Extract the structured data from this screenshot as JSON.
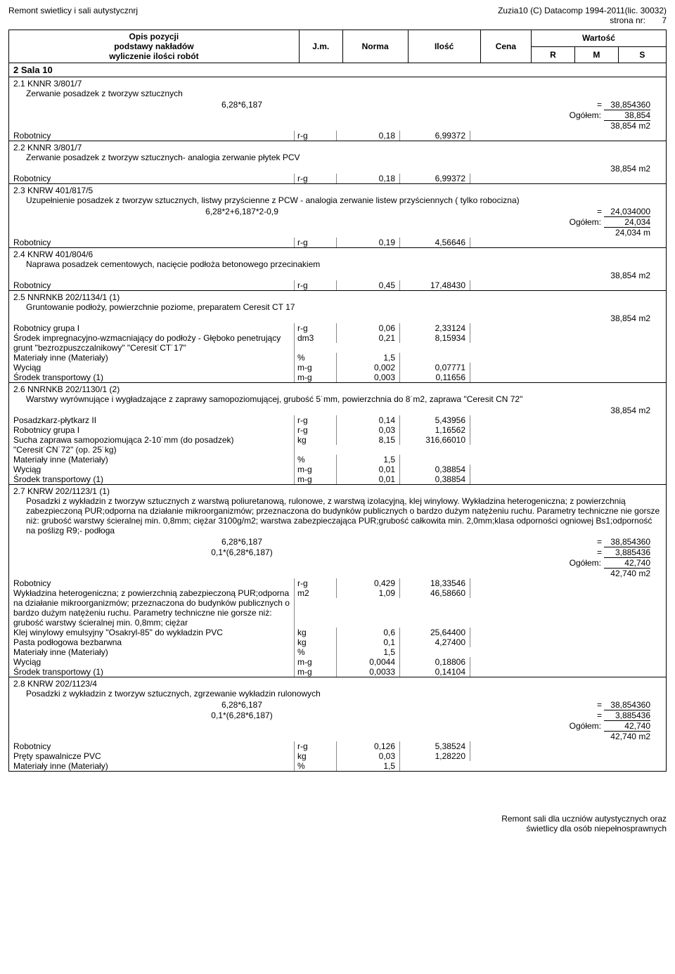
{
  "header": {
    "title_left": "Remont swietlicy i sali autystycznrj",
    "title_right_1": "Zuzia10 (C) Datacomp 1994-2011(lic. 30032)",
    "title_right_2": "strona nr:",
    "page_no": "7"
  },
  "columns": {
    "opis1": "Opis pozycji",
    "opis2": "podstawy nakładów",
    "opis3": "wyliczenie ilości robót",
    "jm": "J.m.",
    "norma": "Norma",
    "ilosc": "Ilość",
    "cena": "Cena",
    "wartosc": "Wartość",
    "r": "R",
    "m": "M",
    "s": "S"
  },
  "section": {
    "num": "2",
    "title": "Sala 10"
  },
  "items": [
    {
      "num": "2.1",
      "code": "KNNR 3/801/7",
      "desc": "Zerwanie posadzek z tworzyw sztucznych",
      "calcs": [
        {
          "formula": "6,28*6,187",
          "result": "38,854360"
        }
      ],
      "ogolem": "38,854",
      "total": "38,854",
      "total_unit": "m2",
      "details": [
        {
          "label": "Robotnicy",
          "jm": "r-g",
          "norma": "0,18",
          "ilosc": "6,99372"
        }
      ]
    },
    {
      "num": "2.2",
      "code": "KNNR 3/801/7",
      "desc": "Zerwanie posadzek z tworzyw sztucznych- analogia zerwanie płytek PCV",
      "total": "38,854",
      "total_unit": "m2",
      "details": [
        {
          "label": "Robotnicy",
          "jm": "r-g",
          "norma": "0,18",
          "ilosc": "6,99372"
        }
      ]
    },
    {
      "num": "2.3",
      "code": "KNRW 401/817/5",
      "desc": "Uzupełnienie posadzek z tworzyw sztucznych, listwy przyścienne z PCW - analogia zerwanie listew przyściennych ( tylko robocizna)",
      "calcs": [
        {
          "formula": "6,28*2+6,187*2-0,9",
          "result": "24,034000"
        }
      ],
      "ogolem": "24,034",
      "total": "24,034",
      "total_unit": "m",
      "details": [
        {
          "label": "Robotnicy",
          "jm": "r-g",
          "norma": "0,19",
          "ilosc": "4,56646"
        }
      ]
    },
    {
      "num": "2.4",
      "code": "KNRW 401/804/6",
      "desc": "Naprawa posadzek cementowych, nacięcie podłoża betonowego przecinakiem",
      "total": "38,854",
      "total_unit": "m2",
      "details": [
        {
          "label": "Robotnicy",
          "jm": "r-g",
          "norma": "0,45",
          "ilosc": "17,48430"
        }
      ]
    },
    {
      "num": "2.5",
      "code": "NNRNKB 202/1134/1 (1)",
      "desc": "Gruntowanie podłoży, powierzchnie poziome, preparatem Ceresit CT 17",
      "total": "38,854",
      "total_unit": "m2",
      "details": [
        {
          "label": "Robotnicy grupa I",
          "jm": "r-g",
          "norma": "0,06",
          "ilosc": "2,33124"
        },
        {
          "label": "Środek impregnacyjno-wzmacniający do podłoży - Głęboko penetrujący grunt \"bezrozpuszczalnikowy\" \"Ceresit˙CT˙17\"",
          "jm": "dm3",
          "norma": "0,21",
          "ilosc": "8,15934"
        },
        {
          "label": "Materiały inne (Materiały)",
          "jm": "%",
          "norma": "1,5",
          "ilosc": ""
        },
        {
          "label": "Wyciąg",
          "jm": "m-g",
          "norma": "0,002",
          "ilosc": "0,07771"
        },
        {
          "label": "Środek transportowy (1)",
          "jm": "m-g",
          "norma": "0,003",
          "ilosc": "0,11656"
        }
      ]
    },
    {
      "num": "2.6",
      "code": "NNRNKB 202/1130/1 (2)",
      "desc": "Warstwy wyrównujące i wygładzające z zaprawy samopoziomującej, grubość 5˙mm, powierzchnia do 8˙m2, zaprawa \"Ceresit CN 72\"",
      "total": "38,854",
      "total_unit": "m2",
      "details": [
        {
          "label": "Posadzkarz-płytkarz II",
          "jm": "r-g",
          "norma": "0,14",
          "ilosc": "5,43956"
        },
        {
          "label": "Robotnicy grupa I",
          "jm": "r-g",
          "norma": "0,03",
          "ilosc": "1,16562"
        },
        {
          "label": "Sucha zaprawa samopoziomująca 2-10˙mm (do posadzek) \"Ceresit˙CN˙72\" (op. 25˙kg)",
          "jm": "kg",
          "norma": "8,15",
          "ilosc": "316,66010"
        },
        {
          "label": "Materiały inne (Materiały)",
          "jm": "%",
          "norma": "1,5",
          "ilosc": ""
        },
        {
          "label": "Wyciąg",
          "jm": "m-g",
          "norma": "0,01",
          "ilosc": "0,38854"
        },
        {
          "label": "Środek transportowy (1)",
          "jm": "m-g",
          "norma": "0,01",
          "ilosc": "0,38854"
        }
      ]
    },
    {
      "num": "2.7",
      "code": "KNRW 202/1123/1 (1)",
      "desc": "Posadzki z wykładzin z tworzyw sztucznych z warstwą poliuretanową, rulonowe, z warstwą izolacyjną, klej winylowy. Wykładzina heterogeniczna; z powierzchnią zabezpieczoną PUR;odporna na działanie mikroorganizmów; przeznaczona do budynków publicznych o bardzo dużym natężeniu ruchu. Parametry techniczne nie gorsze niż: grubość warstwy ścieralnej min. 0,8mm; ciężar 3100g/m2; warstwa zabezpieczająca PUR;grubość całkowita min. 2,0mm;klasa odporności ogniowej Bs1;odporność na poślizg R9;- podłoga",
      "calcs": [
        {
          "formula": "6,28*6,187",
          "result": "38,854360"
        },
        {
          "formula": "0,1*(6,28*6,187)",
          "result": "3,885436"
        }
      ],
      "ogolem": "42,740",
      "total": "42,740",
      "total_unit": "m2",
      "details": [
        {
          "label": "Robotnicy",
          "jm": "r-g",
          "norma": "0,429",
          "ilosc": "18,33546"
        },
        {
          "label": "Wykładzina heterogeniczna; z powierzchnią zabezpieczoną PUR;odporna na działanie mikroorganizmów; przeznaczona do budynków publicznych o bardzo dużym natężeniu ruchu. Parametry techniczne nie gorsze niż: grubość warstwy ścieralnej min. 0,8mm; ciężar",
          "jm": "m2",
          "norma": "1,09",
          "ilosc": "46,58660"
        },
        {
          "label": "Klej winylowy emulsyjny \"Osakryl-85\" do wykładzin PVC",
          "jm": "kg",
          "norma": "0,6",
          "ilosc": "25,64400"
        },
        {
          "label": "Pasta podłogowa bezbarwna",
          "jm": "kg",
          "norma": "0,1",
          "ilosc": "4,27400"
        },
        {
          "label": "Materiały inne (Materiały)",
          "jm": "%",
          "norma": "1,5",
          "ilosc": ""
        },
        {
          "label": "Wyciąg",
          "jm": "m-g",
          "norma": "0,0044",
          "ilosc": "0,18806"
        },
        {
          "label": "Środek transportowy (1)",
          "jm": "m-g",
          "norma": "0,0033",
          "ilosc": "0,14104"
        }
      ]
    },
    {
      "num": "2.8",
      "code": "KNRW 202/1123/4",
      "desc": "Posadzki z wykładzin z tworzyw sztucznych, zgrzewanie wykładzin rulonowych",
      "calcs": [
        {
          "formula": "6,28*6,187",
          "result": "38,854360"
        },
        {
          "formula": "0,1*(6,28*6,187)",
          "result": "3,885436"
        }
      ],
      "ogolem": "42,740",
      "total": "42,740",
      "total_unit": "m2",
      "details": [
        {
          "label": "Robotnicy",
          "jm": "r-g",
          "norma": "0,126",
          "ilosc": "5,38524"
        },
        {
          "label": "Pręty spawalnicze PVC",
          "jm": "kg",
          "norma": "0,03",
          "ilosc": "1,28220"
        },
        {
          "label": "Materiały inne (Materiały)",
          "jm": "%",
          "norma": "1,5",
          "ilosc": ""
        }
      ]
    }
  ],
  "footer": {
    "line1": "Remont sali dla uczniów autystycznych oraz",
    "line2": "świetlicy dla osób niepełnosprawnych"
  }
}
